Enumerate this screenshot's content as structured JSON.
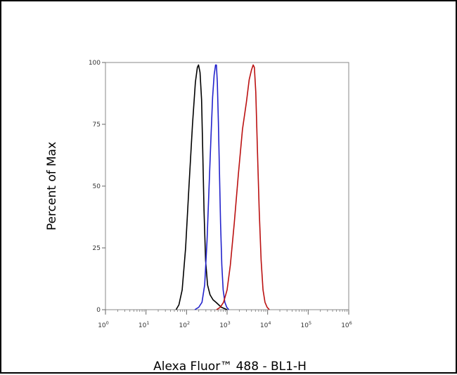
{
  "chart_data": {
    "type": "line",
    "title": "",
    "xlabel": "Alexa Fluor™ 488 - BL1-H",
    "ylabel": "Percent of Max",
    "x_scale": "log",
    "xlim": [
      1,
      1000000
    ],
    "ylim": [
      0,
      100
    ],
    "y_ticks": [
      "0",
      "25",
      "50",
      "75",
      "100"
    ],
    "x_ticks": [
      {
        "base": "10",
        "exp": "0"
      },
      {
        "base": "10",
        "exp": "1"
      },
      {
        "base": "10",
        "exp": "2"
      },
      {
        "base": "10",
        "exp": "3"
      },
      {
        "base": "10",
        "exp": "4"
      },
      {
        "base": "10",
        "exp": "5"
      },
      {
        "base": "10",
        "exp": "6"
      }
    ],
    "grid": false,
    "legend": "none",
    "series": [
      {
        "color": "#000000",
        "points": [
          [
            55,
            0
          ],
          [
            65,
            2
          ],
          [
            78,
            8
          ],
          [
            95,
            25
          ],
          [
            115,
            50
          ],
          [
            140,
            75
          ],
          [
            165,
            92
          ],
          [
            185,
            98
          ],
          [
            198,
            99
          ],
          [
            215,
            96
          ],
          [
            235,
            85
          ],
          [
            250,
            65
          ],
          [
            270,
            40
          ],
          [
            295,
            20
          ],
          [
            330,
            10
          ],
          [
            380,
            6
          ],
          [
            450,
            4
          ],
          [
            530,
            3
          ],
          [
            620,
            2
          ],
          [
            720,
            1
          ],
          [
            850,
            0.5
          ],
          [
            1000,
            0
          ]
        ]
      },
      {
        "color": "#2222cc",
        "points": [
          [
            160,
            0
          ],
          [
            200,
            1
          ],
          [
            240,
            3
          ],
          [
            280,
            10
          ],
          [
            320,
            28
          ],
          [
            360,
            50
          ],
          [
            400,
            70
          ],
          [
            440,
            86
          ],
          [
            480,
            95
          ],
          [
            520,
            99
          ],
          [
            545,
            99
          ],
          [
            575,
            92
          ],
          [
            610,
            76
          ],
          [
            650,
            55
          ],
          [
            690,
            35
          ],
          [
            740,
            18
          ],
          [
            800,
            8
          ],
          [
            880,
            3
          ],
          [
            980,
            1
          ],
          [
            1100,
            0
          ]
        ]
      },
      {
        "color": "#bb1111",
        "points": [
          [
            550,
            0
          ],
          [
            680,
            1
          ],
          [
            820,
            3
          ],
          [
            1000,
            8
          ],
          [
            1200,
            18
          ],
          [
            1500,
            35
          ],
          [
            1900,
            55
          ],
          [
            2400,
            73
          ],
          [
            3000,
            84
          ],
          [
            3500,
            93
          ],
          [
            4000,
            97
          ],
          [
            4400,
            99
          ],
          [
            4700,
            98
          ],
          [
            5100,
            88
          ],
          [
            5600,
            65
          ],
          [
            6200,
            40
          ],
          [
            6900,
            20
          ],
          [
            7700,
            8
          ],
          [
            8600,
            3
          ],
          [
            9700,
            1
          ],
          [
            11000,
            0
          ]
        ]
      }
    ]
  }
}
